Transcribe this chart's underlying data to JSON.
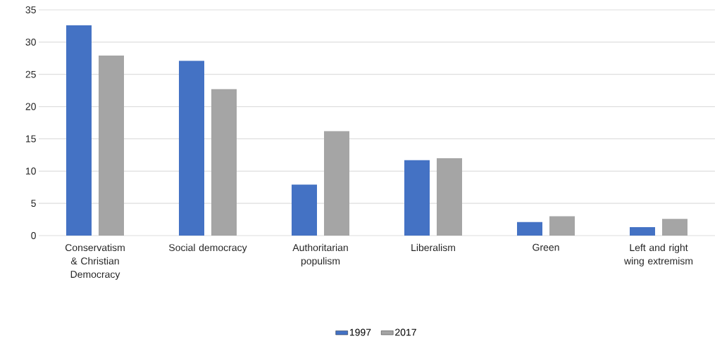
{
  "chart_data": {
    "type": "bar",
    "categories": [
      "Conservatism & Christian Democracy",
      "Social democracy",
      "Authoritarian populism",
      "Liberalism",
      "Green",
      "Left and right wing extremism"
    ],
    "series": [
      {
        "name": "1997",
        "color": "#4472c4",
        "values": [
          32.6,
          27.1,
          7.9,
          11.7,
          2.1,
          1.3
        ]
      },
      {
        "name": "2017",
        "color": "#a5a5a5",
        "values": [
          27.9,
          22.7,
          16.2,
          12.0,
          3.0,
          2.6
        ]
      }
    ],
    "ylim": [
      0,
      35
    ],
    "yticks": [
      0,
      5,
      10,
      15,
      20,
      25,
      30,
      35
    ],
    "grid": "y",
    "legend": "bottom"
  }
}
